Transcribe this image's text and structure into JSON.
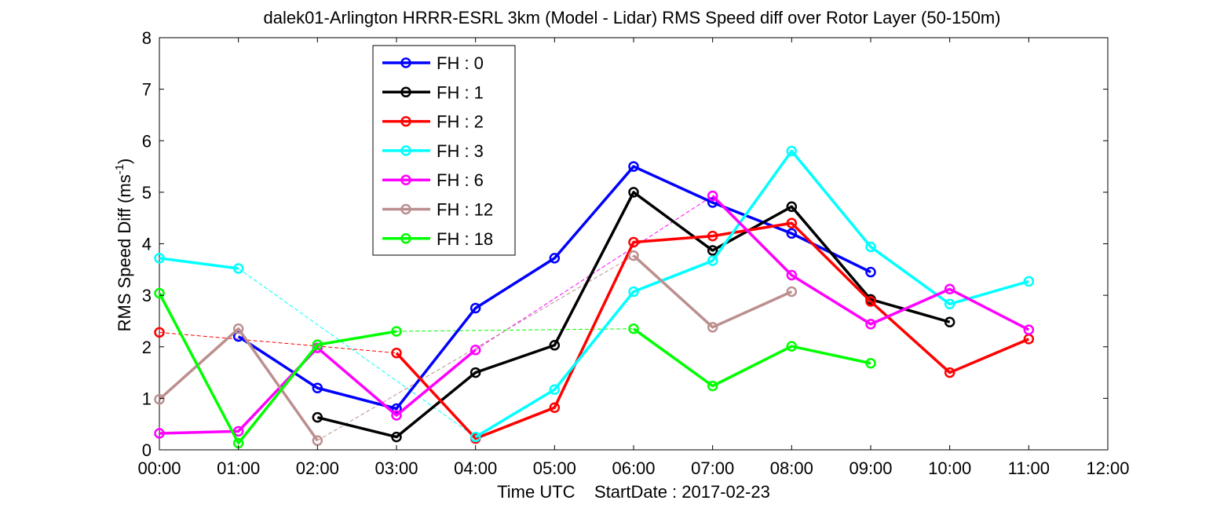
{
  "chart_data": {
    "type": "line",
    "title": "dalek01-Arlington HRRR-ESRL 3km (Model - Lidar) RMS Speed diff over Rotor Layer (50-150m)",
    "xlabel": "Time UTC    StartDate : 2017-02-23",
    "ylabel": "RMS Speed Diff (ms",
    "ylabel_sup": "-1",
    "ylabel_close": ")",
    "xlim": [
      0,
      12
    ],
    "ylim": [
      0,
      8
    ],
    "x_ticks": [
      {
        "value": 0,
        "label": "00:00"
      },
      {
        "value": 1,
        "label": "01:00"
      },
      {
        "value": 2,
        "label": "02:00"
      },
      {
        "value": 3,
        "label": "03:00"
      },
      {
        "value": 4,
        "label": "04:00"
      },
      {
        "value": 5,
        "label": "05:00"
      },
      {
        "value": 6,
        "label": "06:00"
      },
      {
        "value": 7,
        "label": "07:00"
      },
      {
        "value": 8,
        "label": "08:00"
      },
      {
        "value": 9,
        "label": "09:00"
      },
      {
        "value": 10,
        "label": "10:00"
      },
      {
        "value": 11,
        "label": "11:00"
      },
      {
        "value": 12,
        "label": "12:00"
      }
    ],
    "y_ticks": [
      {
        "value": 0,
        "label": "0"
      },
      {
        "value": 1,
        "label": "1"
      },
      {
        "value": 2,
        "label": "2"
      },
      {
        "value": 3,
        "label": "3"
      },
      {
        "value": 4,
        "label": "4"
      },
      {
        "value": 5,
        "label": "5"
      },
      {
        "value": 6,
        "label": "6"
      },
      {
        "value": 7,
        "label": "7"
      },
      {
        "value": 8,
        "label": "8"
      }
    ],
    "grid": false,
    "legend_position": "top-left",
    "series": [
      {
        "name": "FH : 0",
        "color": "#0000ff",
        "points": [
          [
            1,
            2.2
          ],
          [
            2,
            1.2
          ],
          [
            3,
            0.8
          ],
          [
            4,
            2.75
          ],
          [
            5,
            3.72
          ],
          [
            6,
            5.5
          ],
          [
            7,
            4.8
          ],
          [
            8,
            4.2
          ],
          [
            9,
            3.45
          ]
        ],
        "gap_links": []
      },
      {
        "name": "FH : 1",
        "color": "#000000",
        "points": [
          [
            2,
            0.63
          ],
          [
            3,
            0.25
          ],
          [
            4,
            1.5
          ],
          [
            5,
            2.03
          ],
          [
            6,
            5.0
          ],
          [
            7,
            3.87
          ],
          [
            8,
            4.72
          ],
          [
            9,
            2.92
          ],
          [
            10,
            2.48
          ]
        ],
        "gap_links": []
      },
      {
        "name": "FH : 2",
        "color": "#ff0000",
        "points": [
          [
            0,
            2.28
          ],
          [
            3,
            1.88
          ],
          [
            4,
            0.22
          ],
          [
            5,
            0.82
          ],
          [
            6,
            4.03
          ],
          [
            7,
            4.15
          ],
          [
            8,
            4.4
          ],
          [
            9,
            2.88
          ],
          [
            10,
            1.5
          ],
          [
            11,
            2.15
          ]
        ],
        "gap_links": [
          [
            0,
            3
          ]
        ]
      },
      {
        "name": "FH : 3",
        "color": "#00ffff",
        "points": [
          [
            0,
            3.72
          ],
          [
            1,
            3.52
          ],
          [
            4,
            0.25
          ],
          [
            5,
            1.17
          ],
          [
            6,
            3.07
          ],
          [
            7,
            3.67
          ],
          [
            8,
            5.8
          ],
          [
            9,
            3.94
          ],
          [
            10,
            2.83
          ],
          [
            11,
            3.27
          ]
        ],
        "gap_links": [
          [
            1,
            4
          ]
        ]
      },
      {
        "name": "FH : 6",
        "color": "#ff00ff",
        "points": [
          [
            0,
            0.32
          ],
          [
            1,
            0.36
          ],
          [
            2,
            1.98
          ],
          [
            3,
            0.67
          ],
          [
            4,
            1.94
          ],
          [
            7,
            4.93
          ],
          [
            8,
            3.39
          ],
          [
            9,
            2.44
          ],
          [
            10,
            3.12
          ],
          [
            11,
            2.33
          ]
        ],
        "gap_links": [
          [
            4,
            7
          ]
        ]
      },
      {
        "name": "FH : 12",
        "color": "#bc8f8f",
        "points": [
          [
            0,
            0.98
          ],
          [
            1,
            2.35
          ],
          [
            2,
            0.18
          ],
          [
            6,
            3.77
          ],
          [
            7,
            2.38
          ],
          [
            8,
            3.07
          ]
        ],
        "gap_links": [
          [
            2,
            6
          ]
        ]
      },
      {
        "name": "FH : 18",
        "color": "#00ff00",
        "points": [
          [
            0,
            3.04
          ],
          [
            1,
            0.13
          ],
          [
            2,
            2.04
          ],
          [
            3,
            2.3
          ],
          [
            6,
            2.35
          ],
          [
            7,
            1.24
          ],
          [
            8,
            2.01
          ],
          [
            9,
            1.68
          ]
        ],
        "gap_links": [
          [
            3,
            6
          ]
        ]
      }
    ]
  }
}
